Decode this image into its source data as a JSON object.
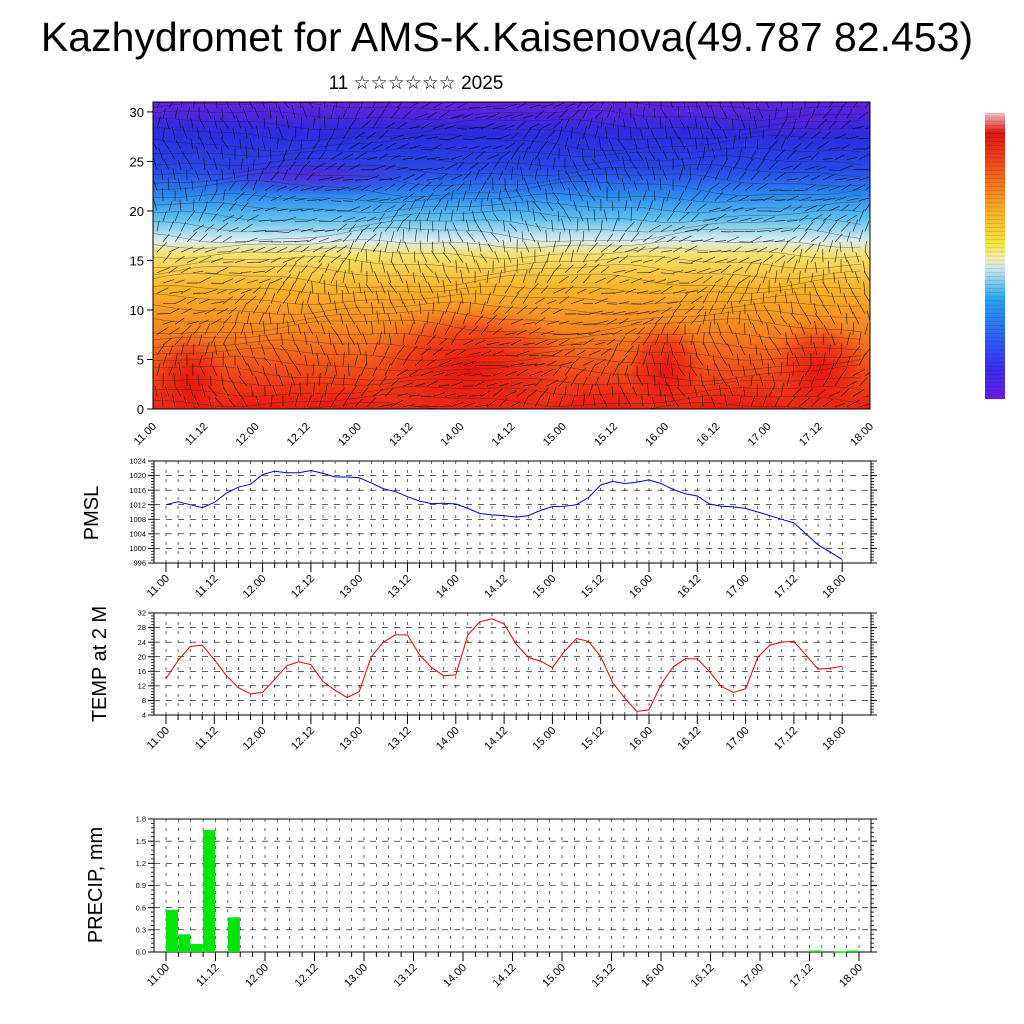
{
  "page": {
    "title": "Kazhydromet for AMS-K.Kaisenova(49.787 82.453)",
    "subtitle": "11 ☆☆☆☆☆☆ 2025"
  },
  "time_ticks": [
    "11.00",
    "11.12",
    "12.00",
    "12.12",
    "13.00",
    "13.12",
    "14.00",
    "14.12",
    "15.00",
    "15.12",
    "16.00",
    "16.12",
    "17.00",
    "17.12",
    "18.00"
  ],
  "chart_data": [
    {
      "type": "heatmap",
      "title": "",
      "description_key": "cross-section",
      "xlabel": "",
      "ylabel": "",
      "ylim": [
        0,
        31
      ],
      "y_ticks": [
        0,
        5,
        10,
        15,
        20,
        25,
        30
      ],
      "x": [
        "11.00",
        "11.12",
        "12.00",
        "12.12",
        "13.00",
        "13.12",
        "14.00",
        "14.12",
        "15.00",
        "15.12",
        "16.00",
        "16.12",
        "17.00",
        "17.12",
        "18.00"
      ],
      "colorbar": {
        "colors": [
          "#6a1fe0",
          "#3b2cf0",
          "#2c63f2",
          "#2aa4f0",
          "#8fd6f2",
          "#f4efb4",
          "#f8e23a",
          "#f7b22a",
          "#f2781e",
          "#ec3a1c",
          "#e0160e",
          "#e86a6a"
        ],
        "labels": []
      }
    },
    {
      "type": "line",
      "ylabel": "PMSL",
      "ylim": [
        996,
        1024
      ],
      "y_ticks": [
        996,
        1000,
        1004,
        1008,
        1012,
        1016,
        1020,
        1024
      ],
      "line_color": "#0000cc",
      "x_hours": [
        0,
        3,
        6,
        9,
        12,
        15,
        18,
        21,
        24,
        27,
        30,
        33,
        36,
        39,
        42,
        45,
        48,
        51,
        54,
        57,
        60,
        63,
        66,
        69,
        72,
        75,
        78,
        81,
        84,
        87,
        90,
        93,
        96,
        99,
        102,
        105,
        108,
        111,
        114,
        117,
        120,
        123,
        126,
        129,
        132,
        135,
        138,
        141,
        144,
        147,
        150,
        153,
        156,
        159,
        162,
        165,
        168
      ],
      "values": [
        1012,
        1012.8,
        1012,
        1011.2,
        1012.6,
        1015.2,
        1016.8,
        1017.6,
        1020.3,
        1021.2,
        1020.8,
        1020.8,
        1021.4,
        1020.6,
        1019.6,
        1019.6,
        1019.4,
        1018,
        1016.4,
        1015.6,
        1014.2,
        1013,
        1012.3,
        1012.4,
        1012.2,
        1011,
        1009.6,
        1009.2,
        1009,
        1008.6,
        1009,
        1010.4,
        1011.5,
        1011.6,
        1012,
        1014,
        1017.4,
        1018.4,
        1017.8,
        1018.2,
        1018.8,
        1017.8,
        1016.2,
        1015,
        1014.4,
        1012.2,
        1011.6,
        1011.4,
        1011,
        1010,
        1009,
        1008,
        1007,
        1004,
        1001,
        999,
        997
      ]
    },
    {
      "type": "line",
      "ylabel": "TEMP at 2 M",
      "ylim": [
        4,
        32
      ],
      "y_ticks": [
        4,
        8,
        12,
        16,
        20,
        24,
        28,
        32
      ],
      "line_color": "#e00000",
      "x_hours": [
        0,
        3,
        6,
        9,
        12,
        15,
        18,
        21,
        24,
        27,
        30,
        33,
        36,
        39,
        42,
        45,
        48,
        51,
        54,
        57,
        60,
        63,
        66,
        69,
        72,
        75,
        78,
        81,
        84,
        87,
        90,
        93,
        96,
        99,
        102,
        105,
        108,
        111,
        114,
        117,
        120,
        123,
        126,
        129,
        132,
        135,
        138,
        141,
        144,
        147,
        150,
        153,
        156,
        159,
        162,
        165,
        168
      ],
      "values": [
        14,
        19,
        22.8,
        23.2,
        19.2,
        14.8,
        11.5,
        9.8,
        10.2,
        13.8,
        17.5,
        18.6,
        17.8,
        13.2,
        10.8,
        8.8,
        10.4,
        20,
        24,
        26,
        26,
        20.5,
        17,
        14.8,
        15,
        26,
        29.6,
        30.4,
        29,
        23.4,
        19.8,
        18.8,
        17,
        21.5,
        25,
        24.2,
        20,
        12.8,
        8.6,
        5,
        5.4,
        12.4,
        17.2,
        19.4,
        19.4,
        16,
        11.8,
        10.2,
        11.2,
        19.8,
        23.2,
        24,
        24.2,
        20.4,
        16.6,
        16.8,
        17.4
      ]
    },
    {
      "type": "bar",
      "ylabel": "PRECIP, mm",
      "ylim": [
        0,
        1.8
      ],
      "y_ticks": [
        "0.0",
        "0.3",
        "0.6",
        "0.9",
        "1.2",
        "1.5",
        "1.8"
      ],
      "bar_color": "#00e60a",
      "x_hours": [
        0,
        3,
        6,
        9,
        12,
        15,
        18,
        21,
        24,
        27,
        30,
        33,
        36,
        39,
        42,
        45,
        48,
        51,
        54,
        57,
        60,
        63,
        66,
        69,
        72,
        75,
        78,
        81,
        84,
        87,
        90,
        93,
        96,
        99,
        102,
        105,
        108,
        111,
        114,
        117,
        120,
        123,
        126,
        129,
        132,
        135,
        138,
        141,
        144,
        147,
        150,
        153,
        156,
        159,
        162,
        165
      ],
      "values": [
        0.57,
        0.24,
        0.11,
        1.65,
        0,
        0.47,
        0,
        0,
        0,
        0,
        0,
        0,
        0,
        0,
        0,
        0,
        0,
        0,
        0,
        0,
        0,
        0,
        0,
        0,
        0,
        0,
        0,
        0,
        0,
        0,
        0,
        0,
        0,
        0,
        0,
        0,
        0,
        0,
        0,
        0,
        0,
        0,
        0,
        0,
        0,
        0,
        0,
        0,
        0,
        0,
        0,
        0,
        0.02,
        0,
        0.01,
        0.02
      ]
    }
  ]
}
